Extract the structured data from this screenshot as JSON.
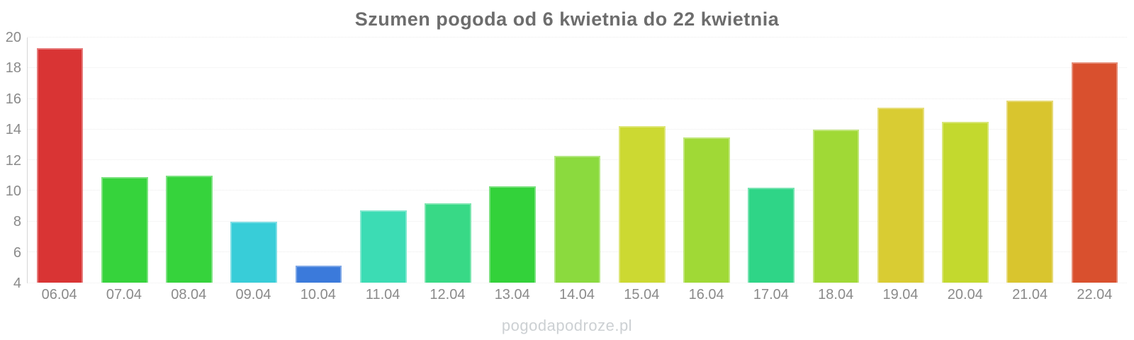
{
  "title": "Szumen pogoda od 6 kwietnia do 22 kwietnia",
  "watermark": "pogodapodroze.pl",
  "chart_data": {
    "type": "bar",
    "title": "Szumen pogoda od 6 kwietnia do 22 kwietnia",
    "categories": [
      "06.04",
      "07.04",
      "08.04",
      "09.04",
      "10.04",
      "11.04",
      "12.04",
      "13.04",
      "14.04",
      "15.04",
      "16.04",
      "17.04",
      "18.04",
      "19.04",
      "20.04",
      "21.04",
      "22.04"
    ],
    "values": [
      19.3,
      10.9,
      11.0,
      8.0,
      5.1,
      8.7,
      9.2,
      10.3,
      12.3,
      14.2,
      13.5,
      10.2,
      14.0,
      15.4,
      14.5,
      15.9,
      18.4
    ],
    "bar_colors": [
      "#d93434",
      "#36d33c",
      "#36d33c",
      "#38cdd8",
      "#3b7adb",
      "#3cdcb4",
      "#38d986",
      "#33d23a",
      "#8bda3e",
      "#ccd932",
      "#a0d936",
      "#2fd587",
      "#a0d936",
      "#d9cc33",
      "#c3d92e",
      "#d9c52e",
      "#d9502e"
    ],
    "xlabel": "",
    "ylabel": "",
    "ylim": [
      4,
      20
    ],
    "yticks": [
      4,
      6,
      8,
      10,
      12,
      14,
      16,
      18,
      20
    ],
    "grid": true,
    "legend": false
  },
  "colors": {
    "background": "#ffffff",
    "title_text": "#6d6d6d",
    "axis_text": "#8a8a8a",
    "gridline": "#ededed",
    "axis_line": "#d6d6d6",
    "watermark_text": "#ccd0d3"
  }
}
